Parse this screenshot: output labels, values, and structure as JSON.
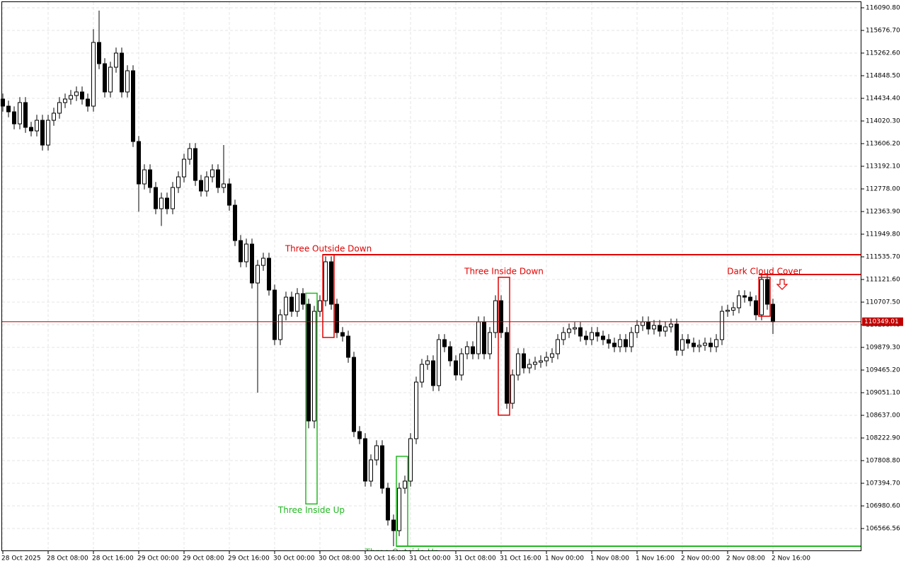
{
  "chart_data": {
    "type": "candlestick",
    "categories": [
      "28 Oct 2025",
      null,
      null,
      null,
      null,
      null,
      null,
      null,
      "28 Oct 08:00",
      null,
      null,
      null,
      null,
      null,
      null,
      null,
      "28 Oct 16:00",
      null,
      null,
      null,
      null,
      null,
      null,
      null,
      "29 Oct 00:00",
      null,
      null,
      null,
      null,
      null,
      null,
      null,
      "29 Oct 08:00",
      null,
      null,
      null,
      null,
      null,
      null,
      null,
      "29 Oct 16:00",
      null,
      null,
      null,
      null,
      null,
      null,
      null,
      "30 Oct 00:00",
      null,
      null,
      null,
      null,
      null,
      null,
      null,
      "30 Oct 08:00",
      null,
      null,
      null,
      null,
      null,
      null,
      null,
      "30 Oct 16:00",
      null,
      null,
      null,
      null,
      null,
      null,
      null,
      "31 Oct 00:00",
      null,
      null,
      null,
      null,
      null,
      null,
      null,
      "31 Oct 08:00",
      null,
      null,
      null,
      null,
      null,
      null,
      null,
      "31 Oct 16:00",
      null,
      null,
      null,
      null,
      null,
      null,
      null,
      "1 Nov 00:00",
      null,
      null,
      null,
      null,
      null,
      null,
      null,
      "1 Nov 08:00",
      null,
      null,
      null,
      null,
      null,
      null,
      null,
      "1 Nov 16:00",
      null,
      null,
      null,
      null,
      null,
      null,
      null,
      "2 Nov 00:00",
      null,
      null,
      null,
      null,
      null,
      null,
      null,
      "2 Nov 08:00",
      null,
      null,
      null,
      null,
      null,
      null,
      null,
      "2 Nov 16:00"
    ],
    "open": [
      114421,
      114292,
      114188,
      113968,
      114357,
      113904,
      113839,
      114033,
      113580,
      114033,
      114163,
      114357,
      114421,
      114486,
      114551,
      114421,
      114292,
      115457,
      115068,
      114551,
      115004,
      115262,
      114551,
      114939,
      113645,
      112869,
      113127,
      112804,
      112416,
      112610,
      112416,
      112804,
      112998,
      113321,
      113516,
      112933,
      112739,
      112998,
      113127,
      112804,
      112869,
      112480,
      111833,
      111445,
      111769,
      111057,
      111380,
      111510,
      110928,
      110022,
      110475,
      110798,
      110539,
      110863,
      110669,
      108534,
      110539,
      110733,
      111445,
      110669,
      110151,
      110086,
      109698,
      108340,
      108210,
      107434,
      107822,
      108081,
      107304,
      106722,
      106528,
      107304,
      107434,
      108210,
      109245,
      109569,
      109634,
      109181,
      110022,
      109892,
      109634,
      109375,
      109763,
      109892,
      109763,
      110345,
      109763,
      110151,
      110733,
      110151,
      108857,
      109375,
      109763,
      109504,
      109569,
      109608,
      109634,
      109698,
      109763,
      110022,
      110151,
      110216,
      110240,
      110086,
      110022,
      110151,
      110086,
      110022,
      109957,
      109892,
      110022,
      109892,
      110151,
      110281,
      110345,
      110216,
      110281,
      110177,
      110255,
      110306,
      109828,
      110022,
      109957,
      109892,
      109918,
      109957,
      109892,
      110022,
      110539,
      110560,
      110604,
      110824,
      110798,
      110733,
      110475,
      111122,
      110669
    ],
    "high": [
      114521,
      114392,
      114288,
      114457,
      114457,
      114004,
      114133,
      114133,
      114133,
      114263,
      114457,
      114521,
      114586,
      114651,
      114651,
      114521,
      115700,
      116039,
      115168,
      115104,
      115362,
      115362,
      115039,
      115039,
      113745,
      113227,
      113227,
      112904,
      112710,
      112710,
      112904,
      113098,
      113421,
      113616,
      113616,
      113033,
      113098,
      113227,
      113227,
      113580,
      112969,
      112580,
      111933,
      111869,
      111869,
      111480,
      111610,
      111610,
      111028,
      110575,
      110898,
      110898,
      110963,
      110963,
      110769,
      110639,
      110833,
      111545,
      111545,
      110769,
      110251,
      110186,
      109798,
      108440,
      108310,
      107922,
      108181,
      108181,
      107404,
      106822,
      107404,
      107534,
      108310,
      109345,
      109669,
      109734,
      109734,
      110122,
      110122,
      109992,
      109734,
      109863,
      109992,
      109992,
      110445,
      110445,
      110251,
      110833,
      110833,
      110251,
      109475,
      109863,
      109863,
      109669,
      109708,
      109734,
      109798,
      109863,
      110122,
      110251,
      110316,
      110340,
      110340,
      110186,
      110251,
      110251,
      110186,
      110122,
      110057,
      110122,
      110122,
      110251,
      110381,
      110445,
      110445,
      110381,
      110381,
      110355,
      110406,
      110406,
      110122,
      110122,
      110057,
      110018,
      110057,
      110057,
      110122,
      110639,
      110660,
      110704,
      110924,
      110924,
      110898,
      110833,
      111200,
      111222,
      110769
    ],
    "low": [
      114192,
      114088,
      113868,
      113868,
      113804,
      113739,
      113739,
      113480,
      113480,
      113933,
      114063,
      114257,
      114321,
      114386,
      114321,
      114192,
      114192,
      114968,
      114451,
      114451,
      114904,
      114451,
      114451,
      113545,
      112360,
      112769,
      112704,
      112316,
      112100,
      112316,
      112316,
      112704,
      112898,
      113221,
      112833,
      112639,
      112639,
      112898,
      112704,
      112704,
      112380,
      111733,
      111345,
      111345,
      110957,
      109051,
      111280,
      110828,
      109922,
      109922,
      110375,
      110439,
      110439,
      110569,
      108400,
      108400,
      110439,
      110633,
      110569,
      110051,
      109986,
      109598,
      108240,
      108110,
      107334,
      107334,
      107722,
      107204,
      106622,
      106243,
      106428,
      107204,
      107334,
      108110,
      109145,
      109469,
      109081,
      109081,
      109792,
      109534,
      109275,
      109275,
      109663,
      109663,
      109663,
      109663,
      109663,
      110051,
      110051,
      108757,
      108757,
      109275,
      109404,
      109404,
      109469,
      109508,
      109534,
      109598,
      109663,
      109922,
      110051,
      110116,
      109986,
      109922,
      109922,
      109986,
      109922,
      109857,
      109792,
      109792,
      109792,
      109792,
      110051,
      110181,
      110116,
      110116,
      110077,
      110077,
      110155,
      109728,
      109728,
      109857,
      109792,
      109792,
      109818,
      109792,
      109792,
      109922,
      110439,
      110460,
      110504,
      110698,
      110633,
      110375,
      110375,
      110569,
      110125
    ],
    "close": [
      114292,
      114188,
      113968,
      114357,
      113904,
      113839,
      114033,
      113580,
      114033,
      114163,
      114357,
      114421,
      114486,
      114551,
      114421,
      114292,
      115457,
      115068,
      114551,
      115004,
      115262,
      114551,
      114939,
      113645,
      112869,
      113127,
      112804,
      112416,
      112610,
      112416,
      112804,
      112998,
      113321,
      113516,
      112933,
      112739,
      112998,
      113127,
      112804,
      112869,
      112480,
      111833,
      111445,
      111769,
      111057,
      111380,
      111510,
      110928,
      110022,
      110475,
      110798,
      110539,
      110863,
      110669,
      108534,
      110539,
      110733,
      111445,
      110669,
      110151,
      110086,
      109698,
      108340,
      108210,
      107434,
      107822,
      108081,
      107304,
      106722,
      106528,
      107304,
      107434,
      108210,
      109245,
      109569,
      109634,
      109181,
      110022,
      109892,
      109634,
      109375,
      109763,
      109892,
      109763,
      110345,
      109763,
      110151,
      110733,
      110151,
      108857,
      109375,
      109763,
      109504,
      109569,
      109608,
      109634,
      109698,
      109763,
      110022,
      110151,
      110216,
      110240,
      110086,
      110022,
      110151,
      110086,
      110022,
      109957,
      109892,
      110022,
      109892,
      110151,
      110281,
      110345,
      110216,
      110281,
      110177,
      110255,
      110306,
      109828,
      110022,
      109957,
      109892,
      109918,
      109957,
      109892,
      110022,
      110539,
      110560,
      110604,
      110824,
      110798,
      110733,
      110475,
      111122,
      110669,
      110349.01
    ],
    "up_color": "#ffffff",
    "down_color": "#000000",
    "ylim": [
      106153,
      116233
    ],
    "yticks": [
      {
        "value": 116090.8,
        "label": "116090.80"
      },
      {
        "value": 115676.7,
        "label": "115676.70"
      },
      {
        "value": 115262.6,
        "label": "115262.60"
      },
      {
        "value": 114848.5,
        "label": "114848.50"
      },
      {
        "value": 114434.4,
        "label": "114434.40"
      },
      {
        "value": 114020.3,
        "label": "114020.30"
      },
      {
        "value": 113606.2,
        "label": "113606.20"
      },
      {
        "value": 113192.1,
        "label": "113192.10"
      },
      {
        "value": 112778.0,
        "label": "112778.00"
      },
      {
        "value": 112363.9,
        "label": "112363.90"
      },
      {
        "value": 111949.8,
        "label": "111949.80"
      },
      {
        "value": 111535.7,
        "label": "111535.70"
      },
      {
        "value": 111121.6,
        "label": "111121.60"
      },
      {
        "value": 110707.5,
        "label": "110707.50"
      },
      {
        "value": 110293.4,
        "label": "110293.40"
      },
      {
        "value": 109879.3,
        "label": "109879.30"
      },
      {
        "value": 109465.2,
        "label": "109465.20"
      },
      {
        "value": 109051.1,
        "label": "109051.10"
      },
      {
        "value": 108637.0,
        "label": "108637.00"
      },
      {
        "value": 108222.9,
        "label": "108222.90"
      },
      {
        "value": 107808.8,
        "label": "107808.80"
      },
      {
        "value": 107394.7,
        "label": "107394.70"
      },
      {
        "value": 106980.6,
        "label": "106980.60"
      },
      {
        "value": 106566.56,
        "label": "106566.56"
      }
    ],
    "grid": true,
    "price_line": 110349.01,
    "price_line_color": "#c00000",
    "patterns": [
      {
        "label": "Three Outside Down",
        "color": "#e00000",
        "from": 57,
        "to": 58,
        "high": 111575,
        "low": 110061,
        "level": 111575
      },
      {
        "label": "Three Inside Down",
        "color": "#e00000",
        "from": 88,
        "to": 89,
        "high": 111161,
        "low": 108640
      },
      {
        "label": "Dark Cloud Cover",
        "color": "#e00000",
        "from": 134,
        "to": 135,
        "high": 111161,
        "low": 110449,
        "level": 111212
      },
      {
        "label": "Three Inside Up",
        "color": "#22b822",
        "from": 54,
        "to": 55,
        "high": 110870,
        "low": 107016
      },
      {
        "label": "Three Outside Up",
        "color": "#22b822",
        "from": 70,
        "to": 71,
        "high": 107887,
        "low": 106243,
        "level": 106243
      }
    ]
  }
}
